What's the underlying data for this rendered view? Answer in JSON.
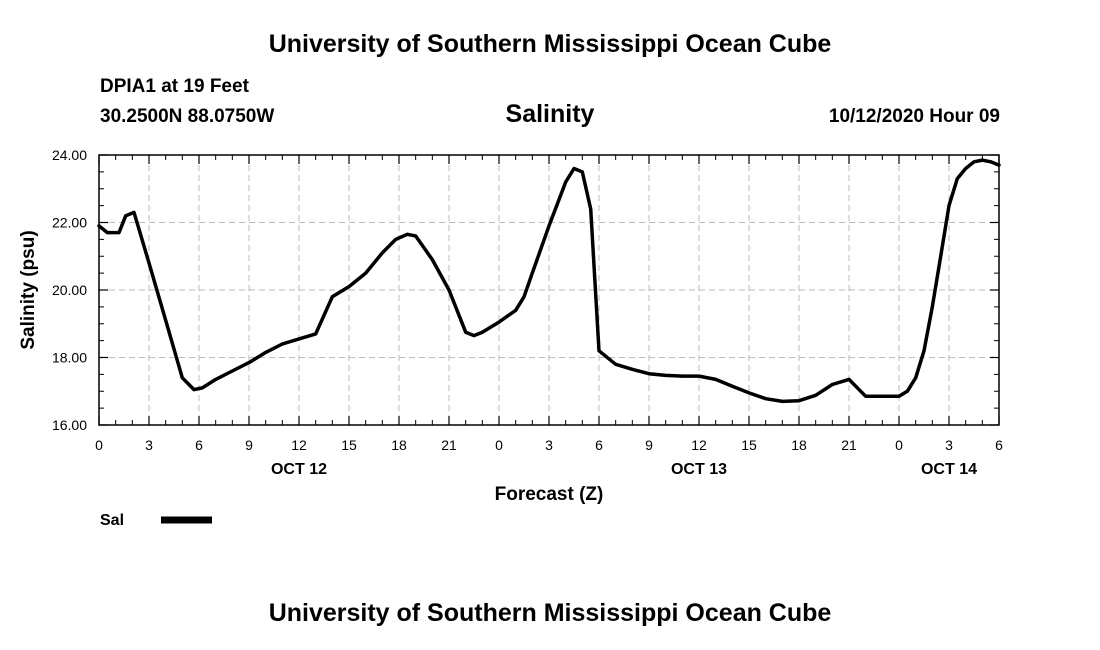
{
  "header": {
    "title_top": "University of Southern Mississippi Ocean Cube",
    "station": "DPIA1 at 19 Feet",
    "coords": "30.2500N 88.0750W",
    "chart_title": "Salinity",
    "timestamp": "10/12/2020 Hour 09",
    "title_bottom": "University of Southern Mississippi Ocean Cube"
  },
  "colors": {
    "line": "#000000",
    "grid": "#bbbbbb",
    "axis": "#000000"
  },
  "chart_data": {
    "type": "line",
    "title": "Salinity",
    "xlabel": "Forecast (Z)",
    "ylabel": "Salinity (psu)",
    "ylim": [
      16,
      24
    ],
    "xlim": [
      0,
      54
    ],
    "grid": true,
    "legend": "bottom-left",
    "y_ticks": [
      {
        "value": 16,
        "label": "16.00"
      },
      {
        "value": 18,
        "label": "18.00"
      },
      {
        "value": 20,
        "label": "20.00"
      },
      {
        "value": 22,
        "label": "22.00"
      },
      {
        "value": 24,
        "label": "24.00"
      }
    ],
    "x_ticks": [
      {
        "value": 0,
        "label": "0"
      },
      {
        "value": 3,
        "label": "3"
      },
      {
        "value": 6,
        "label": "6"
      },
      {
        "value": 9,
        "label": "9"
      },
      {
        "value": 12,
        "label": "12"
      },
      {
        "value": 15,
        "label": "15"
      },
      {
        "value": 18,
        "label": "18"
      },
      {
        "value": 21,
        "label": "21"
      },
      {
        "value": 24,
        "label": "0"
      },
      {
        "value": 27,
        "label": "3"
      },
      {
        "value": 30,
        "label": "6"
      },
      {
        "value": 33,
        "label": "9"
      },
      {
        "value": 36,
        "label": "12"
      },
      {
        "value": 39,
        "label": "15"
      },
      {
        "value": 42,
        "label": "18"
      },
      {
        "value": 45,
        "label": "21"
      },
      {
        "value": 48,
        "label": "0"
      },
      {
        "value": 51,
        "label": "3"
      },
      {
        "value": 54,
        "label": "6"
      }
    ],
    "date_labels": [
      {
        "value": 12,
        "label": "OCT 12"
      },
      {
        "value": 36,
        "label": "OCT 13"
      },
      {
        "value": 51,
        "label": "OCT 14"
      }
    ],
    "series": [
      {
        "name": "Sal",
        "x": [
          0,
          0.5,
          1.2,
          1.6,
          2.1,
          3.0,
          4.0,
          5.0,
          5.7,
          6.2,
          7.0,
          8.0,
          9.0,
          10.0,
          11.0,
          12.0,
          13.0,
          14.0,
          15.0,
          16.0,
          17.0,
          17.8,
          18.5,
          19.0,
          20.0,
          21.0,
          22.0,
          22.5,
          23.0,
          24.0,
          25.0,
          25.5,
          26.0,
          27.0,
          28.0,
          28.5,
          29.0,
          29.5,
          30.0,
          31.0,
          32.0,
          33.0,
          34.0,
          35.0,
          36.0,
          37.0,
          38.0,
          39.0,
          40.0,
          41.0,
          42.0,
          43.0,
          44.0,
          45.0,
          46.0,
          47.0,
          48.0,
          48.5,
          49.0,
          49.5,
          50.0,
          50.5,
          51.0,
          51.5,
          52.0,
          52.5,
          53.0,
          53.5,
          54.0
        ],
        "values": [
          21.9,
          21.7,
          21.7,
          22.2,
          22.3,
          20.8,
          19.1,
          17.4,
          17.05,
          17.1,
          17.35,
          17.6,
          17.85,
          18.15,
          18.4,
          18.55,
          18.7,
          19.8,
          20.1,
          20.5,
          21.1,
          21.5,
          21.65,
          21.6,
          20.9,
          20.0,
          18.75,
          18.65,
          18.75,
          19.05,
          19.4,
          19.8,
          20.5,
          21.9,
          23.2,
          23.6,
          23.5,
          22.4,
          18.2,
          17.8,
          17.65,
          17.52,
          17.47,
          17.45,
          17.45,
          17.35,
          17.15,
          16.95,
          16.78,
          16.7,
          16.72,
          16.88,
          17.2,
          17.35,
          16.85,
          16.85,
          16.85,
          17.0,
          17.4,
          18.2,
          19.5,
          21.0,
          22.5,
          23.3,
          23.6,
          23.8,
          23.85,
          23.8,
          23.7
        ]
      }
    ]
  }
}
